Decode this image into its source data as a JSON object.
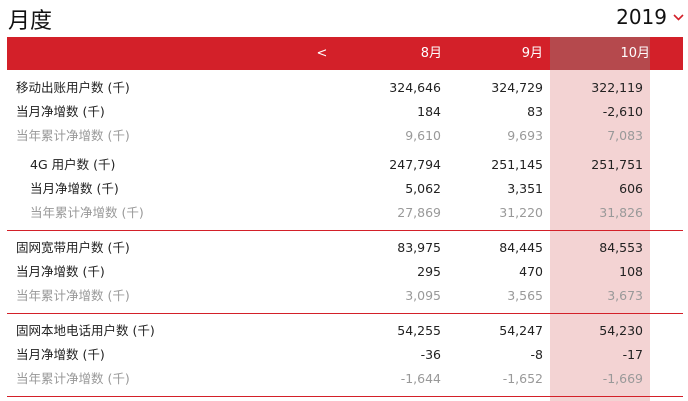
{
  "title": "月度",
  "year": "2019",
  "icons": {
    "year_chevron": "chevron-down-icon"
  },
  "colors": {
    "header_bg": "#d32029",
    "highlight_col": "#f3d3d3",
    "highlight_header": "#b5494d"
  },
  "header": {
    "prev": "<",
    "months": [
      "8月",
      "9月",
      "10月"
    ]
  },
  "rows": [
    {
      "label": "移动出账用户数 (千)",
      "values": [
        "324,646",
        "324,729",
        "322,119"
      ]
    },
    {
      "label": "当月净增数 (千)",
      "values": [
        "184",
        "83",
        "-2,610"
      ]
    },
    {
      "label": "当年累计净增数 (千)",
      "values": [
        "9,610",
        "9,693",
        "7,083"
      ]
    },
    {
      "label": "4G 用户数 (千)",
      "values": [
        "247,794",
        "251,145",
        "251,751"
      ]
    },
    {
      "label": "当月净增数 (千)",
      "values": [
        "5,062",
        "3,351",
        "606"
      ]
    },
    {
      "label": "当年累计净增数 (千)",
      "values": [
        "27,869",
        "31,220",
        "31,826"
      ]
    },
    {
      "label": "固网宽带用户数 (千)",
      "values": [
        "83,975",
        "84,445",
        "84,553"
      ]
    },
    {
      "label": "当月净增数 (千)",
      "values": [
        "295",
        "470",
        "108"
      ]
    },
    {
      "label": "当年累计净增数 (千)",
      "values": [
        "3,095",
        "3,565",
        "3,673"
      ]
    },
    {
      "label": "固网本地电话用户数 (千)",
      "values": [
        "54,255",
        "54,247",
        "54,230"
      ]
    },
    {
      "label": "当月净增数 (千)",
      "values": [
        "-36",
        "-8",
        "-17"
      ]
    },
    {
      "label": "当年累计净增数 (千)",
      "values": [
        "-1,644",
        "-1,652",
        "-1,669"
      ]
    }
  ]
}
